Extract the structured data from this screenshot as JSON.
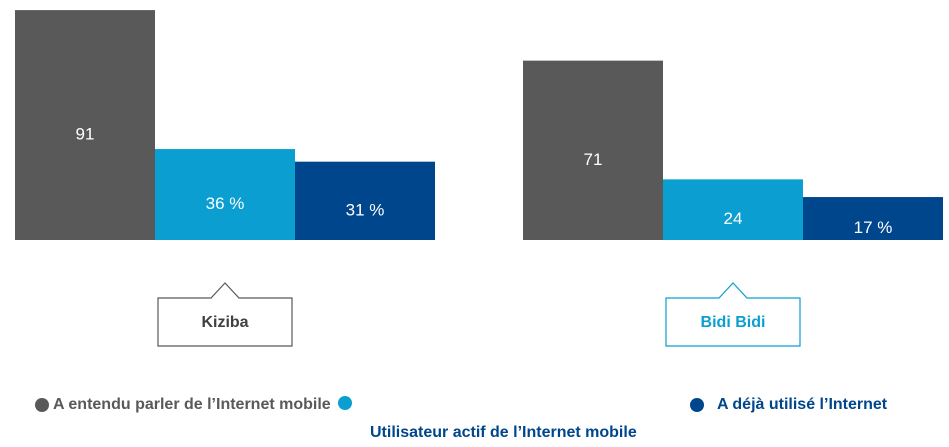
{
  "chart_data": {
    "type": "bar",
    "categories": [
      "Kiziba",
      "Bidi Bidi"
    ],
    "series": [
      {
        "name": "A entendu parler de l’Internet mobile",
        "color": "#595959",
        "values": [
          91,
          71
        ],
        "value_labels": [
          "91",
          "71"
        ]
      },
      {
        "name": "Utilisateur actif de l’Internet mobile",
        "color": "#0a9fd0",
        "values": [
          36,
          24
        ],
        "value_labels": [
          "36 %",
          "24"
        ]
      },
      {
        "name": "A déjà utilisé l’Internet",
        "color": "#00468c",
        "values": [
          31,
          17
        ],
        "value_labels": [
          "31 %",
          "17 %"
        ]
      }
    ],
    "ylim": [
      0,
      95
    ]
  }
}
